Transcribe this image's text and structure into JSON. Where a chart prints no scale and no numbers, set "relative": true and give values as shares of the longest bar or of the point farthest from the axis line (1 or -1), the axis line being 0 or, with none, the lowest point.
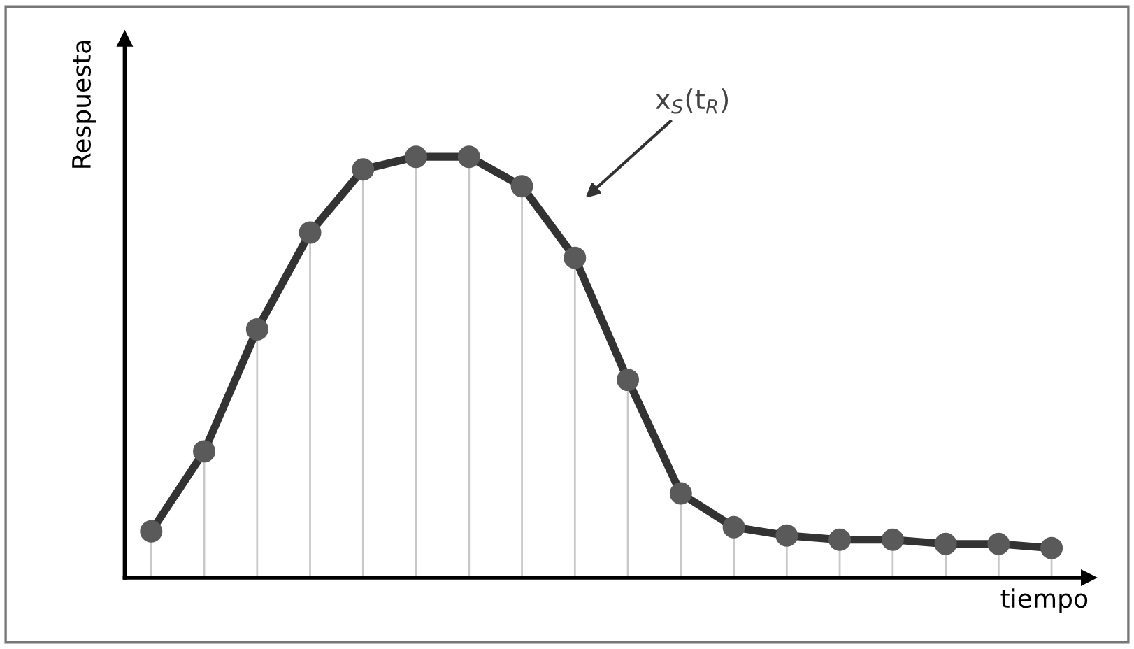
{
  "chart_data": {
    "type": "line",
    "relative": true,
    "xlabel": "tiempo",
    "ylabel": "Respuesta",
    "categories": [
      null,
      null,
      null,
      null,
      null,
      null,
      null,
      null,
      null,
      null,
      null,
      null,
      null,
      null,
      null,
      null,
      null,
      null
    ],
    "series": [
      {
        "color": "#333333",
        "values": [
          0.11,
          0.3,
          0.59,
          0.82,
          0.97,
          1,
          1.0,
          0.93,
          0.76,
          0.47,
          0.2,
          0.12,
          0.1,
          0.09,
          0.09,
          0.08,
          0.08,
          0.07
        ]
      }
    ],
    "marker": "circle",
    "annotations": [
      "x$_{S}$(t$_{R}$)"
    ],
    "grid": "x",
    "legend": false
  }
}
